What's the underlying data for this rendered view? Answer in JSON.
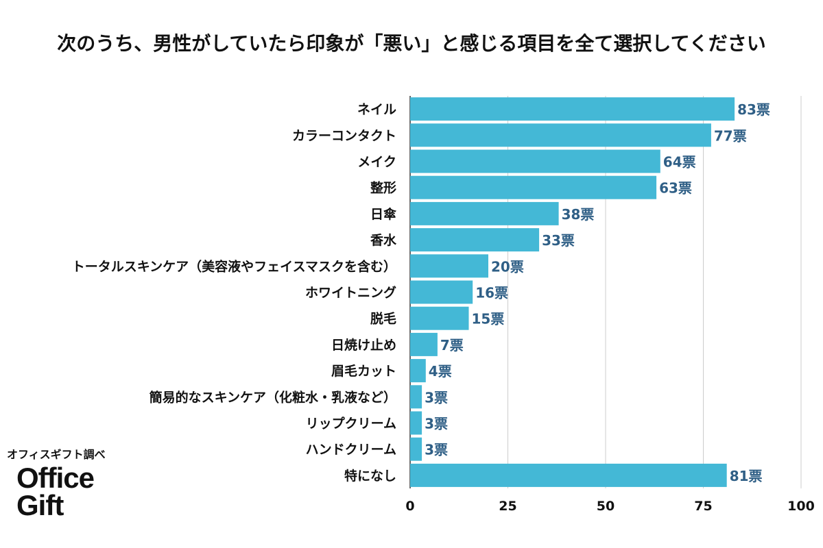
{
  "title": "次のうち、男性がしていたら印象が「悪い」と感じる項目を全て選択してください",
  "source_note": "オフィスギフト調べ",
  "brand": {
    "line1": "Office",
    "line2": "Gift"
  },
  "colors": {
    "bar": "#44b8d6",
    "value_text": "#2f5f86",
    "grid": "#cccccc",
    "axis": "#333333"
  },
  "chart_data": {
    "type": "bar",
    "orientation": "horizontal",
    "title": "次のうち、男性がしていたら印象が「悪い」と感じる項目を全て選択してください",
    "xlabel": "",
    "ylabel": "",
    "xlim": [
      0,
      100
    ],
    "ticks": [
      0,
      25,
      50,
      75,
      100
    ],
    "grid": true,
    "value_suffix": "票",
    "categories": [
      "ネイル",
      "カラーコンタクト",
      "メイク",
      "整形",
      "日傘",
      "香水",
      "トータルスキンケア（美容液やフェイスマスクを含む）",
      "ホワイトニング",
      "脱毛",
      "日焼け止め",
      "眉毛カット",
      "簡易的なスキンケア（化粧水・乳液など）",
      "リップクリーム",
      "ハンドクリーム",
      "特になし"
    ],
    "values": [
      83,
      77,
      64,
      63,
      38,
      33,
      20,
      16,
      15,
      7,
      4,
      3,
      3,
      3,
      81
    ]
  }
}
